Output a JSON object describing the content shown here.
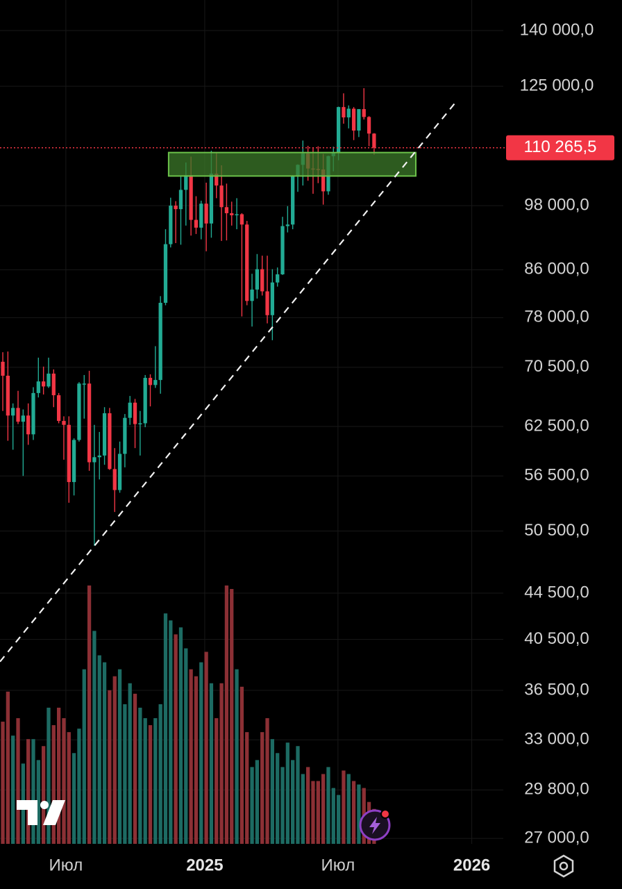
{
  "chart_data": {
    "type": "candlestick",
    "log_scale": true,
    "grid": true,
    "up_color": "#22ab94",
    "down_color": "#f23645",
    "volume_up_color": "#1d6b63",
    "volume_down_color": "#8c3035",
    "categories": [
      null,
      null,
      null,
      null,
      null,
      null,
      null,
      null,
      null,
      null,
      null,
      null,
      null,
      null,
      null,
      null,
      null,
      null,
      null,
      null,
      null,
      null,
      null,
      null,
      null,
      null,
      null,
      null,
      null,
      null,
      null,
      null,
      null,
      null,
      null,
      null,
      null,
      null,
      null,
      null,
      null,
      null,
      null,
      null,
      null,
      null,
      null,
      null,
      null,
      null,
      null,
      null,
      null,
      null,
      null,
      null,
      null,
      null,
      null,
      null,
      null,
      null,
      null,
      null,
      null,
      null,
      null,
      null,
      null,
      null,
      null,
      null,
      null,
      null
    ],
    "open": [
      71300,
      69300,
      63900,
      64900,
      63100,
      63900,
      61500,
      66900,
      68500,
      67800,
      69600,
      66600,
      63200,
      62700,
      55800,
      60800,
      68200,
      68200,
      58100,
      58700,
      58900,
      64200,
      57300,
      54900,
      59100,
      63600,
      65600,
      62800,
      62900,
      69000,
      68000,
      68700,
      80400,
      90600,
      98000,
      97300,
      101200,
      104300,
      95200,
      93700,
      98400,
      94500,
      104600,
      102100,
      97700,
      96500,
      96100,
      96300,
      94300,
      80700,
      82600,
      86100,
      82300,
      78400,
      83800,
      85200,
      94000,
      94300,
      104100,
      106500,
      109000,
      105700,
      105600,
      105500,
      100900,
      108400,
      109200,
      119800,
      117300,
      119400,
      114200,
      119300,
      117400,
      113500
    ],
    "high": [
      72700,
      72800,
      65500,
      67200,
      64700,
      65500,
      67700,
      71900,
      70600,
      71900,
      70200,
      66900,
      63800,
      63800,
      61000,
      68400,
      69400,
      70000,
      62700,
      61800,
      65000,
      64900,
      59800,
      60600,
      64100,
      66500,
      66100,
      64500,
      69400,
      69500,
      73600,
      81500,
      93400,
      99600,
      98900,
      104000,
      107000,
      108300,
      99900,
      99000,
      102700,
      109600,
      109300,
      106400,
      102500,
      98800,
      99500,
      96500,
      95000,
      85300,
      88800,
      88500,
      88500,
      86100,
      86400,
      95800,
      97900,
      104300,
      106600,
      111900,
      110700,
      110400,
      110600,
      108900,
      108500,
      110500,
      119900,
      123200,
      120200,
      119800,
      119300,
      124500,
      117600,
      113600
    ],
    "low": [
      64500,
      60700,
      59600,
      62800,
      56500,
      60200,
      60800,
      66300,
      66700,
      67600,
      65000,
      62900,
      58400,
      53500,
      54300,
      60600,
      63500,
      57100,
      49000,
      56100,
      57800,
      57200,
      52500,
      54600,
      57500,
      62700,
      59800,
      58900,
      62400,
      65100,
      67600,
      66800,
      80000,
      90000,
      90800,
      90500,
      94100,
      92200,
      92500,
      91500,
      89300,
      91800,
      99500,
      91200,
      91300,
      94100,
      93400,
      78200,
      80000,
      76600,
      81100,
      81600,
      77100,
      74500,
      83100,
      85100,
      92800,
      93400,
      100800,
      102100,
      103100,
      100400,
      102600,
      98200,
      100200,
      105100,
      107500,
      115800,
      114700,
      112000,
      112700,
      116800,
      110600,
      108700
    ],
    "close": [
      69300,
      63900,
      64900,
      63100,
      63900,
      61500,
      66900,
      68500,
      67800,
      69600,
      66600,
      63200,
      62700,
      55800,
      60800,
      68200,
      68200,
      58100,
      58700,
      58900,
      64200,
      57300,
      54900,
      59100,
      63600,
      65600,
      62800,
      62900,
      69000,
      68000,
      68700,
      80400,
      90600,
      98000,
      97300,
      101200,
      104300,
      95200,
      93700,
      98400,
      94500,
      104600,
      102100,
      97700,
      96500,
      96100,
      96300,
      94300,
      80700,
      82600,
      86100,
      82300,
      78400,
      83800,
      85200,
      94000,
      94300,
      104100,
      106500,
      109000,
      105700,
      105600,
      105500,
      100900,
      108400,
      109200,
      119800,
      117300,
      119400,
      114200,
      119300,
      117400,
      113500,
      110265.5
    ],
    "volume": [
      175,
      218,
      155,
      180,
      115,
      150,
      150,
      120,
      140,
      195,
      170,
      195,
      180,
      160,
      130,
      165,
      250,
      370,
      305,
      270,
      260,
      220,
      240,
      250,
      200,
      230,
      215,
      195,
      180,
      170,
      180,
      200,
      330,
      320,
      300,
      310,
      280,
      250,
      240,
      260,
      275,
      230,
      180,
      230,
      370,
      365,
      250,
      225,
      160,
      110,
      120,
      160,
      180,
      150,
      130,
      110,
      145,
      120,
      140,
      100,
      110,
      90,
      90,
      100,
      110,
      80,
      70,
      105,
      100,
      90,
      85,
      80,
      60,
      50
    ],
    "xlim": [
      -0.55,
      98.4
    ],
    "xticks": [
      {
        "value": 12.4,
        "label": "Июл"
      },
      {
        "value": 39.7,
        "label": "2025"
      },
      {
        "value": 65.9,
        "label": "Июл"
      },
      {
        "value": 92.2,
        "label": "2026"
      }
    ],
    "ylim": [
      26700,
      149000
    ],
    "yticks": [
      {
        "value": 140000,
        "label": "140 000,0"
      },
      {
        "value": 125000,
        "label": "125 000,0"
      },
      {
        "value": 98000,
        "label": "98 000,0"
      },
      {
        "value": 86000,
        "label": "86 000,0"
      },
      {
        "value": 78000,
        "label": "78 000,0"
      },
      {
        "value": 70500,
        "label": "70 500,0"
      },
      {
        "value": 62500,
        "label": "62 500,0"
      },
      {
        "value": 56500,
        "label": "56 500,0"
      },
      {
        "value": 50500,
        "label": "50 500,0"
      },
      {
        "value": 44500,
        "label": "44 500,0"
      },
      {
        "value": 40500,
        "label": "40 500,0"
      },
      {
        "value": 36500,
        "label": "36 500,0"
      },
      {
        "value": 33000,
        "label": "33 000,0"
      },
      {
        "value": 29800,
        "label": "29 800,0"
      },
      {
        "value": 27000,
        "label": "27 000,0"
      }
    ],
    "price_label": {
      "value": 110265.5,
      "label": "110 265,5"
    },
    "zone": {
      "x": [
        32.6,
        81.2
      ],
      "y": [
        104100,
        109200
      ]
    },
    "trendline": {
      "x": [
        -0.55,
        88.85
      ],
      "y": [
        38700,
        120700
      ]
    }
  }
}
